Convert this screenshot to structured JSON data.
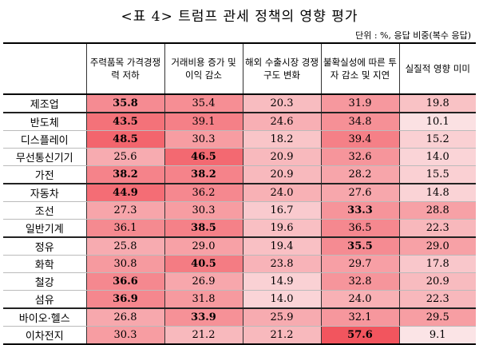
{
  "title": "<표 4> 트럼프 관세 정책의 영향 평가",
  "unit": "단위 : %, 응답 비중(복수 응답)",
  "colors": {
    "scale_light": "#fbe4e6",
    "scale_dark": "#f2555e"
  },
  "table": {
    "headers": [
      "",
      "주력품목 가격경쟁력 저하",
      "거래비용 증가 및 이익 감소",
      "해외 수출시장 경쟁 구도 변화",
      "불확실성에 따른 투자 감소 및 지연",
      "실질적 영향 미미"
    ],
    "rows": [
      {
        "label": "제조업",
        "values": [
          "35.8",
          "35.4",
          "20.3",
          "31.9",
          "19.8"
        ],
        "shade": [
          0.62,
          0.6,
          0.28,
          0.53,
          0.24
        ],
        "bold": [
          true,
          false,
          false,
          false,
          false
        ],
        "group_end": true
      },
      {
        "label": "반도체",
        "values": [
          "43.5",
          "39.1",
          "24.6",
          "34.8",
          "10.1"
        ],
        "shade": [
          0.8,
          0.7,
          0.37,
          0.59,
          0.02
        ],
        "bold": [
          true,
          false,
          false,
          false,
          false
        ],
        "group_end": false
      },
      {
        "label": "디스플레이",
        "values": [
          "48.5",
          "30.3",
          "18.2",
          "39.4",
          "15.2"
        ],
        "shade": [
          0.89,
          0.5,
          0.22,
          0.7,
          0.14
        ],
        "bold": [
          true,
          false,
          false,
          false,
          false
        ],
        "group_end": false
      },
      {
        "label": "무선통신기기",
        "values": [
          "25.6",
          "46.5",
          "20.9",
          "32.6",
          "14.0"
        ],
        "shade": [
          0.4,
          0.86,
          0.3,
          0.55,
          0.11
        ],
        "bold": [
          false,
          true,
          false,
          false,
          false
        ],
        "group_end": false
      },
      {
        "label": "가전",
        "values": [
          "38.2",
          "38.2",
          "20.9",
          "28.2",
          "15.5"
        ],
        "shade": [
          0.68,
          0.68,
          0.3,
          0.44,
          0.14
        ],
        "bold": [
          true,
          true,
          false,
          false,
          false
        ],
        "group_end": true
      },
      {
        "label": "자동차",
        "values": [
          "44.9",
          "36.2",
          "24.0",
          "27.6",
          "14.8"
        ],
        "shade": [
          0.83,
          0.64,
          0.36,
          0.43,
          0.12
        ],
        "bold": [
          true,
          false,
          false,
          false,
          false
        ],
        "group_end": false
      },
      {
        "label": "조선",
        "values": [
          "27.3",
          "30.3",
          "16.7",
          "33.3",
          "28.8"
        ],
        "shade": [
          0.44,
          0.5,
          0.18,
          0.56,
          0.47
        ],
        "bold": [
          false,
          false,
          false,
          true,
          false
        ],
        "group_end": false
      },
      {
        "label": "일반기계",
        "values": [
          "36.1",
          "38.5",
          "19.6",
          "36.5",
          "22.3"
        ],
        "shade": [
          0.63,
          0.69,
          0.26,
          0.64,
          0.31
        ],
        "bold": [
          false,
          true,
          false,
          false,
          false
        ],
        "group_end": true
      },
      {
        "label": "정유",
        "values": [
          "25.8",
          "29.0",
          "19.4",
          "35.5",
          "29.0"
        ],
        "shade": [
          0.4,
          0.47,
          0.25,
          0.62,
          0.47
        ],
        "bold": [
          false,
          false,
          false,
          true,
          false
        ],
        "group_end": false
      },
      {
        "label": "화학",
        "values": [
          "30.8",
          "40.5",
          "23.8",
          "29.7",
          "17.8"
        ],
        "shade": [
          0.52,
          0.73,
          0.34,
          0.48,
          0.2
        ],
        "bold": [
          false,
          true,
          false,
          false,
          false
        ],
        "group_end": false
      },
      {
        "label": "철강",
        "values": [
          "36.6",
          "26.9",
          "14.9",
          "32.8",
          "20.9"
        ],
        "shade": [
          0.64,
          0.43,
          0.13,
          0.55,
          0.29
        ],
        "bold": [
          true,
          false,
          false,
          false,
          false
        ],
        "group_end": false
      },
      {
        "label": "섬유",
        "values": [
          "36.9",
          "31.8",
          "14.0",
          "24.0",
          "22.3"
        ],
        "shade": [
          0.65,
          0.52,
          0.11,
          0.36,
          0.31
        ],
        "bold": [
          true,
          false,
          false,
          false,
          false
        ],
        "group_end": true
      },
      {
        "label": "바이오·헬스",
        "values": [
          "26.8",
          "33.9",
          "25.9",
          "32.1",
          "29.5"
        ],
        "shade": [
          0.42,
          0.58,
          0.4,
          0.54,
          0.49
        ],
        "bold": [
          false,
          true,
          false,
          false,
          false
        ],
        "group_end": false
      },
      {
        "label": "이차전지",
        "values": [
          "30.3",
          "21.2",
          "21.2",
          "57.6",
          "9.1"
        ],
        "shade": [
          0.5,
          0.3,
          0.3,
          1.0,
          0.0
        ],
        "bold": [
          false,
          false,
          false,
          true,
          false
        ],
        "group_end": false
      }
    ]
  }
}
